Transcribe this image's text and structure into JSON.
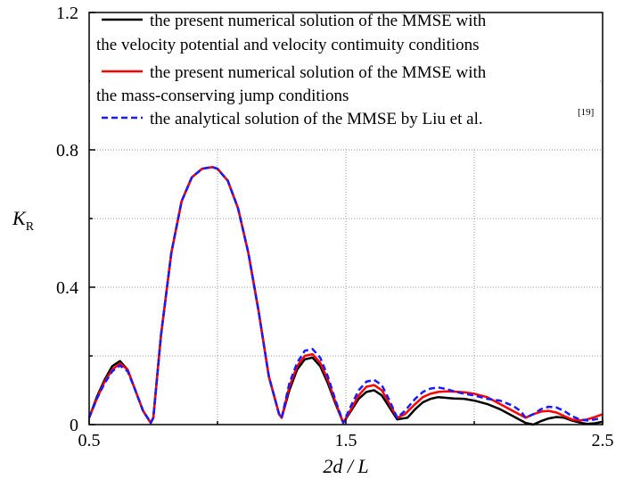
{
  "chart_data": {
    "type": "line",
    "title": "",
    "xlabel": "2d / L",
    "ylabel_main": "K",
    "ylabel_sub": "R",
    "xlim": [
      0.5,
      2.5
    ],
    "ylim": [
      0,
      1.2
    ],
    "xticks": [
      0.5,
      1.5,
      2.5
    ],
    "xtick_labels": [
      "0.5",
      "1.5",
      "2.5"
    ],
    "yticks": [
      0,
      0.4,
      0.8,
      1.2
    ],
    "ytick_labels": [
      "0",
      "0.4",
      "0.8",
      "1.2"
    ],
    "grid": true,
    "legend_position": "top",
    "series": [
      {
        "name_lines": [
          "the present numerical solution of the MMSE with",
          "the velocity potential and velocity contimuity conditions"
        ],
        "color": "#000000",
        "style": "solid",
        "x": [
          0.5,
          0.53,
          0.56,
          0.59,
          0.62,
          0.65,
          0.68,
          0.71,
          0.74,
          0.75,
          0.78,
          0.82,
          0.86,
          0.9,
          0.94,
          0.98,
          1.0,
          1.04,
          1.08,
          1.12,
          1.16,
          1.2,
          1.24,
          1.25,
          1.28,
          1.31,
          1.34,
          1.37,
          1.4,
          1.43,
          1.46,
          1.49,
          1.52,
          1.55,
          1.58,
          1.61,
          1.64,
          1.67,
          1.7,
          1.74,
          1.77,
          1.8,
          1.83,
          1.86,
          1.89,
          1.92,
          1.96,
          2.0,
          2.05,
          2.1,
          2.15,
          2.2,
          2.23,
          2.26,
          2.29,
          2.32,
          2.35,
          2.38,
          2.41,
          2.44,
          2.47,
          2.5
        ],
        "y": [
          0.02,
          0.08,
          0.13,
          0.17,
          0.185,
          0.16,
          0.1,
          0.04,
          0.005,
          0.02,
          0.26,
          0.5,
          0.65,
          0.72,
          0.745,
          0.75,
          0.745,
          0.71,
          0.63,
          0.5,
          0.33,
          0.14,
          0.03,
          0.02,
          0.1,
          0.16,
          0.19,
          0.195,
          0.17,
          0.12,
          0.06,
          0.005,
          0.04,
          0.075,
          0.095,
          0.1,
          0.085,
          0.05,
          0.015,
          0.02,
          0.045,
          0.065,
          0.075,
          0.08,
          0.078,
          0.076,
          0.075,
          0.07,
          0.06,
          0.045,
          0.025,
          0.005,
          0.0,
          0.01,
          0.018,
          0.022,
          0.02,
          0.012,
          0.006,
          0.002,
          0.004,
          0.008
        ]
      },
      {
        "name_lines": [
          "the present numerical solution of the MMSE with",
          "the mass-conserving jump conditions"
        ],
        "color": "#ff0000",
        "style": "solid",
        "x": [
          0.5,
          0.53,
          0.56,
          0.59,
          0.62,
          0.65,
          0.68,
          0.71,
          0.74,
          0.75,
          0.78,
          0.82,
          0.86,
          0.9,
          0.94,
          0.98,
          1.0,
          1.04,
          1.08,
          1.12,
          1.16,
          1.2,
          1.24,
          1.25,
          1.28,
          1.31,
          1.34,
          1.37,
          1.4,
          1.43,
          1.46,
          1.49,
          1.52,
          1.55,
          1.58,
          1.61,
          1.64,
          1.67,
          1.7,
          1.73,
          1.77,
          1.8,
          1.83,
          1.86,
          1.89,
          1.92,
          1.96,
          2.0,
          2.05,
          2.1,
          2.15,
          2.2,
          2.23,
          2.26,
          2.29,
          2.32,
          2.35,
          2.38,
          2.41,
          2.44,
          2.47,
          2.5
        ],
        "y": [
          0.02,
          0.075,
          0.125,
          0.16,
          0.178,
          0.16,
          0.1,
          0.04,
          0.005,
          0.02,
          0.26,
          0.5,
          0.65,
          0.72,
          0.745,
          0.75,
          0.745,
          0.71,
          0.63,
          0.5,
          0.33,
          0.14,
          0.03,
          0.02,
          0.11,
          0.17,
          0.2,
          0.205,
          0.18,
          0.13,
          0.065,
          0.005,
          0.045,
          0.085,
          0.11,
          0.115,
          0.1,
          0.06,
          0.02,
          0.03,
          0.06,
          0.08,
          0.09,
          0.095,
          0.097,
          0.096,
          0.094,
          0.09,
          0.08,
          0.06,
          0.04,
          0.02,
          0.03,
          0.038,
          0.04,
          0.035,
          0.025,
          0.015,
          0.012,
          0.015,
          0.022,
          0.03
        ]
      },
      {
        "name_lines": [
          "the analytical solution of the MMSE by Liu et al."
        ],
        "name_sup": "[19]",
        "color": "#1a1aff",
        "style": "dashed",
        "x": [
          0.5,
          0.53,
          0.56,
          0.59,
          0.62,
          0.65,
          0.68,
          0.71,
          0.74,
          0.75,
          0.78,
          0.82,
          0.86,
          0.9,
          0.94,
          0.98,
          1.0,
          1.04,
          1.08,
          1.12,
          1.16,
          1.2,
          1.24,
          1.25,
          1.28,
          1.31,
          1.34,
          1.37,
          1.4,
          1.43,
          1.46,
          1.49,
          1.52,
          1.55,
          1.58,
          1.61,
          1.64,
          1.67,
          1.7,
          1.73,
          1.77,
          1.8,
          1.83,
          1.86,
          1.89,
          1.92,
          1.96,
          2.0,
          2.05,
          2.1,
          2.15,
          2.18,
          2.2,
          2.23,
          2.26,
          2.29,
          2.32,
          2.35,
          2.38,
          2.41,
          2.44,
          2.47,
          2.5
        ],
        "y": [
          0.02,
          0.075,
          0.12,
          0.155,
          0.172,
          0.155,
          0.1,
          0.04,
          0.005,
          0.02,
          0.26,
          0.5,
          0.65,
          0.72,
          0.745,
          0.75,
          0.745,
          0.71,
          0.63,
          0.5,
          0.33,
          0.14,
          0.03,
          0.02,
          0.12,
          0.18,
          0.215,
          0.22,
          0.195,
          0.14,
          0.07,
          0.005,
          0.055,
          0.1,
          0.125,
          0.13,
          0.115,
          0.07,
          0.02,
          0.04,
          0.075,
          0.095,
          0.105,
          0.108,
          0.104,
          0.097,
          0.09,
          0.085,
          0.075,
          0.07,
          0.055,
          0.04,
          0.02,
          0.03,
          0.045,
          0.052,
          0.05,
          0.04,
          0.025,
          0.015,
          0.012,
          0.015,
          0.02
        ]
      }
    ]
  }
}
